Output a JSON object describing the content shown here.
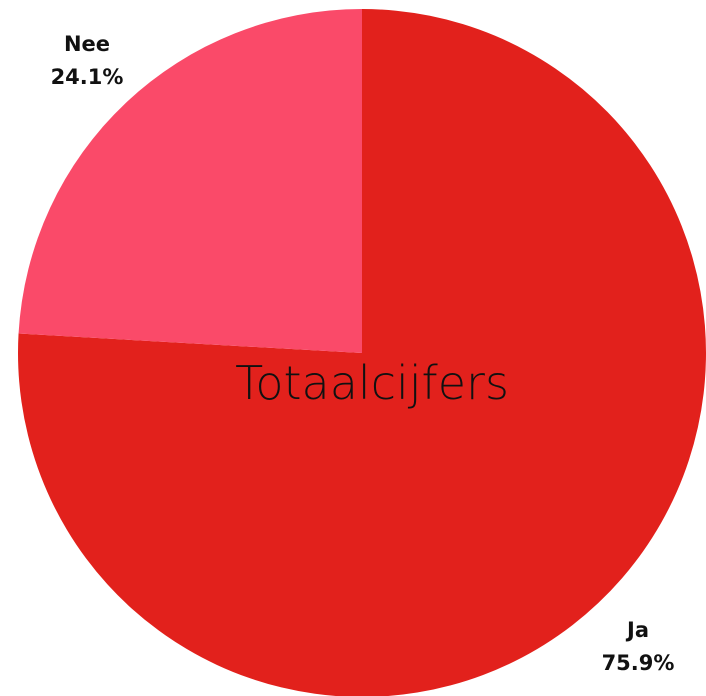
{
  "chart_data": {
    "type": "pie",
    "title": "Totaalcijfers",
    "slices": [
      {
        "label": "Ja",
        "value": 75.9,
        "percent_label": "75.9%",
        "color": "#e2211c"
      },
      {
        "label": "Nee",
        "value": 24.1,
        "percent_label": "24.1%",
        "color": "#fa4a69"
      }
    ],
    "start_angle_deg": 0,
    "direction": "clockwise",
    "legend": "none"
  }
}
